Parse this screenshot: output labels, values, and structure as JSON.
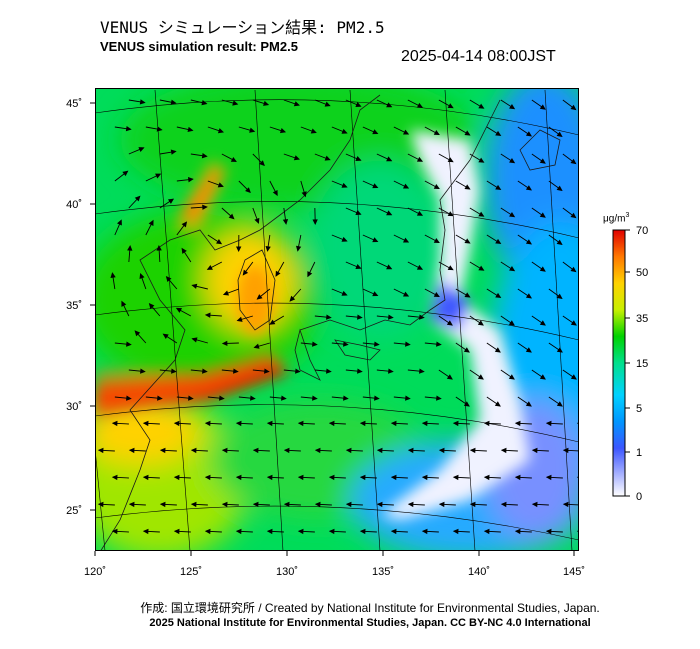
{
  "header": {
    "title_ja": "VENUS シミュレーション結果: PM2.5",
    "title_en": "VENUS simulation result: PM2.5",
    "timestamp": "2025-04-14 08:00JST"
  },
  "map": {
    "projection": "conic",
    "lon_range": [
      120,
      145
    ],
    "lat_range": [
      23,
      46
    ],
    "lon_ticks": [
      "120˚",
      "125˚",
      "130˚",
      "135˚",
      "140˚",
      "145˚"
    ],
    "lat_ticks": [
      "45˚",
      "40˚",
      "35˚",
      "30˚",
      "25˚"
    ],
    "variable": "PM2.5",
    "wind_vectors": "arrows"
  },
  "colorbar": {
    "unit_base": "μg/m",
    "unit_exp": "3",
    "labels": [
      "70",
      "50",
      "35",
      "15",
      "5",
      "1",
      "0"
    ],
    "colors": [
      "#ffffff",
      "#3c56ff",
      "#00c8ff",
      "#00e08c",
      "#00d200",
      "#c8f000",
      "#ffd200",
      "#ff7800",
      "#e00000"
    ]
  },
  "footer": {
    "credit": "作成: 国立環境研究所 / Created by National Institute for Environmental Studies, Japan.",
    "license": "2025 National Institute for Environmental Studies, Japan. CC BY-NC 4.0 International"
  }
}
